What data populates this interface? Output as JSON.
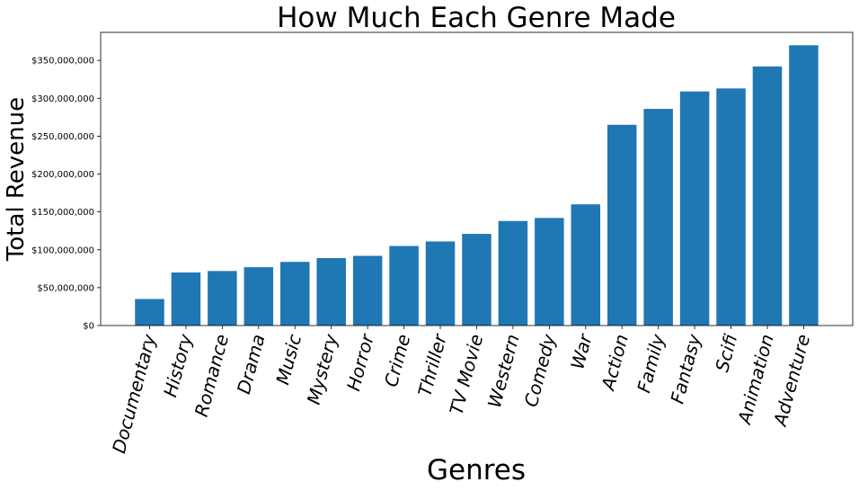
{
  "chart_data": {
    "type": "bar",
    "title": "How Much Each Genre Made",
    "xlabel": "Genres",
    "ylabel": "Total Revenue",
    "categories": [
      "Documentary",
      "History",
      "Romance",
      "Drama",
      "Music",
      "Mystery",
      "Horror",
      "Crime",
      "Thriller",
      "TV Movie",
      "Western",
      "Comedy",
      "War",
      "Action",
      "Family",
      "Fantasy",
      "Scifi",
      "Animation",
      "Adventure"
    ],
    "values": [
      35000000,
      70000000,
      72000000,
      77000000,
      84000000,
      89000000,
      92000000,
      105000000,
      111000000,
      121000000,
      138000000,
      142000000,
      160000000,
      265000000,
      286000000,
      309000000,
      313000000,
      342000000,
      370000000
    ],
    "ylim": [
      0,
      387000000
    ],
    "yticks": [
      0,
      50000000,
      100000000,
      150000000,
      200000000,
      250000000,
      300000000,
      350000000
    ],
    "ytick_labels": [
      "$0",
      "$50,000,000",
      "$100,000,000",
      "$150,000,000",
      "$200,000,000",
      "$250,000,000",
      "$300,000,000",
      "$350,000,000"
    ],
    "bar_color": "#1f77b4",
    "grid": false,
    "legend": false
  }
}
